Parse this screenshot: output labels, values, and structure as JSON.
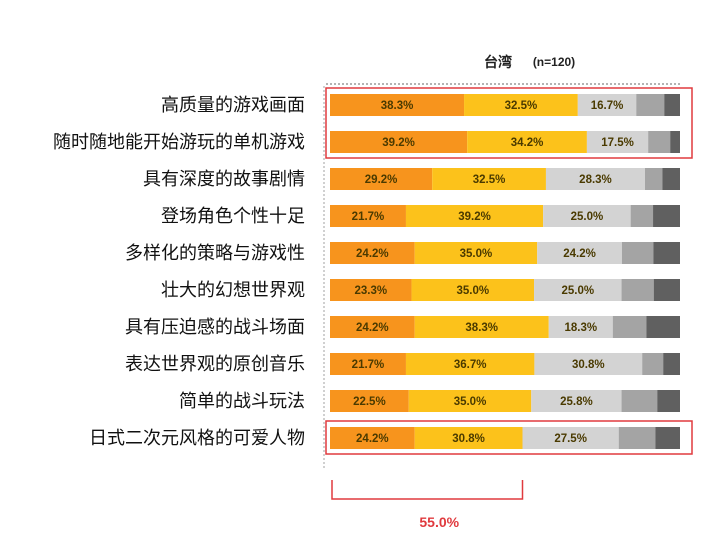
{
  "chart_data": {
    "type": "bar",
    "orientation": "horizontal",
    "stacked": true,
    "header": {
      "title": "台湾",
      "sample": "(n=120)"
    },
    "categories": [
      "高质量的游戏画面",
      "随时随地能开始游玩的单机游戏",
      "具有深度的故事剧情",
      "登场角色个性十足",
      "多样化的策略与游戏性",
      "壮大的幻想世界观",
      "具有压迫感的战斗场面",
      "表达世界观的原创音乐",
      "简单的战斗玩法",
      "日式二次元风格的可爱人物"
    ],
    "series": [
      {
        "values": [
          38.3,
          39.2,
          29.2,
          21.7,
          24.2,
          23.3,
          24.2,
          21.7,
          22.5,
          24.2
        ]
      },
      {
        "values": [
          32.5,
          34.2,
          32.5,
          39.2,
          35.0,
          35.0,
          38.3,
          36.7,
          35.0,
          30.8
        ]
      },
      {
        "values": [
          16.7,
          17.5,
          28.3,
          25.0,
          24.2,
          25.0,
          18.3,
          30.8,
          25.8,
          27.5
        ]
      },
      {
        "values": [
          8.0,
          6.3,
          5.0,
          6.4,
          9.0,
          9.2,
          9.6,
          6.0,
          10.2,
          10.5
        ]
      },
      {
        "values": [
          4.5,
          2.8,
          5.0,
          7.7,
          7.6,
          7.5,
          9.6,
          4.8,
          6.5,
          7.0
        ]
      }
    ],
    "xlim": [
      0,
      100
    ],
    "colors": [
      "#f7941d",
      "#fcc21b",
      "#d3d3d3",
      "#a4a4a4",
      "#606060"
    ],
    "highlight_color": "#e03a3e",
    "highlighted_rows": [
      [
        0,
        1
      ],
      [
        9,
        9
      ]
    ],
    "annotation": {
      "text": "55.0%",
      "rows_summed": [
        9
      ],
      "series_summed": [
        0,
        1
      ]
    }
  }
}
